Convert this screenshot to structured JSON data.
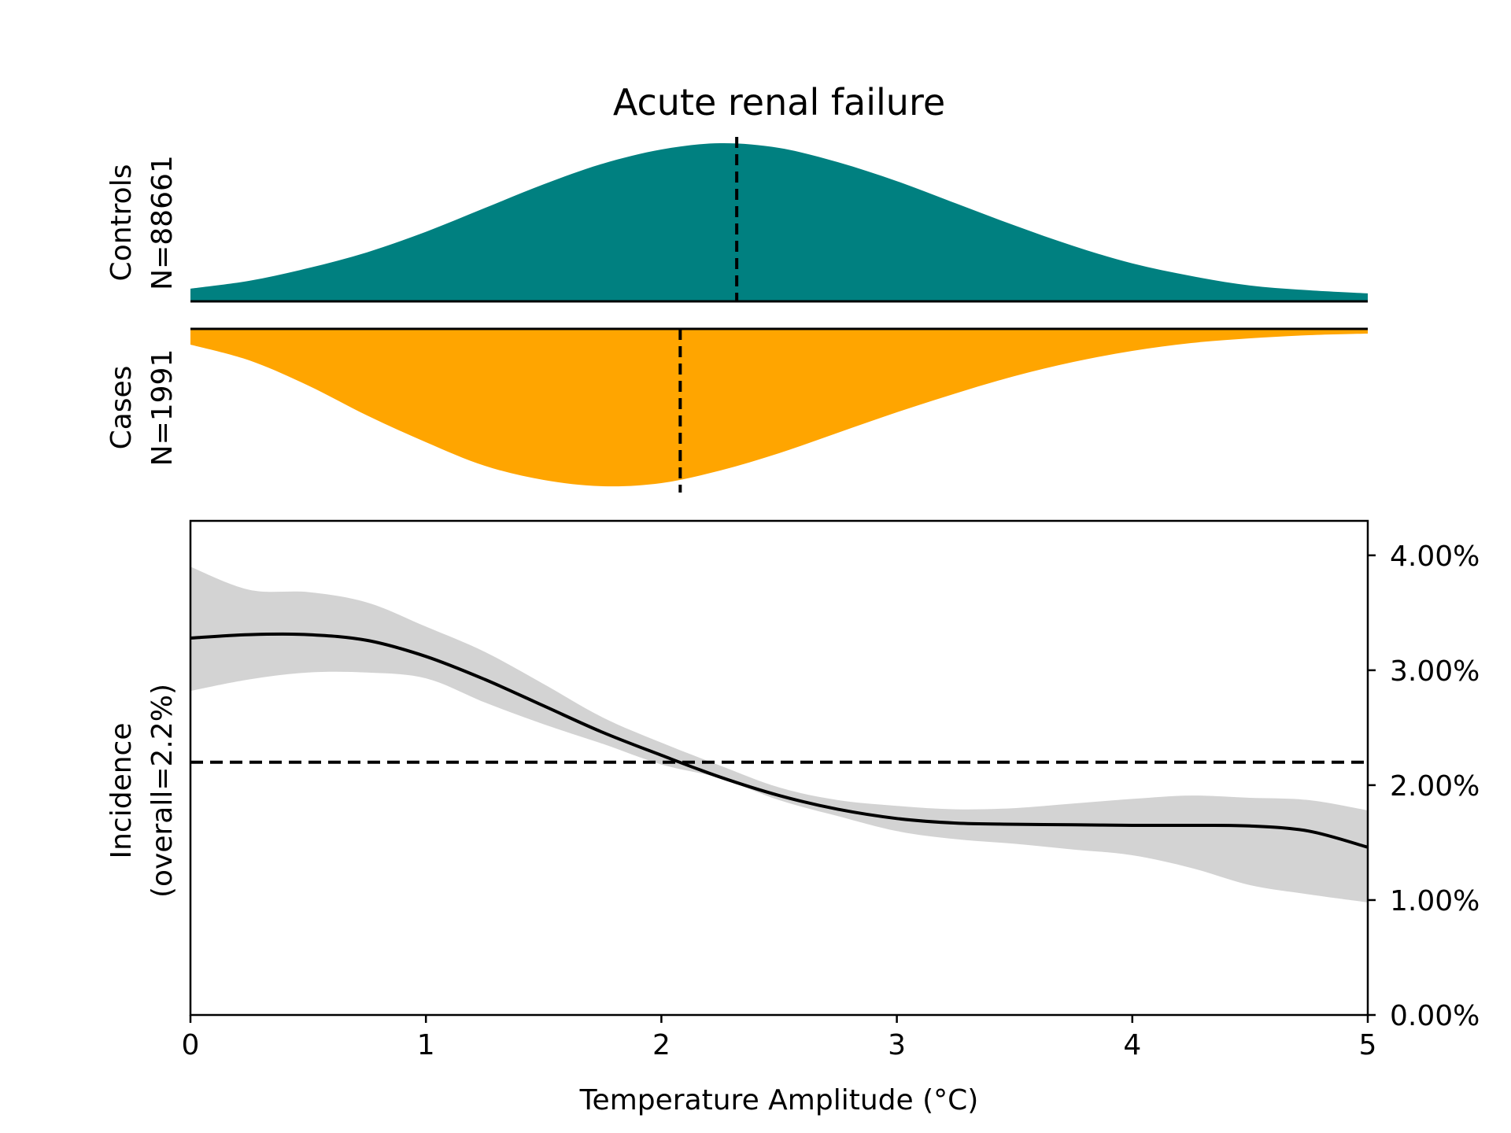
{
  "chart_data": [
    {
      "type": "area",
      "panel": "controls-density",
      "title": "Acute renal failure",
      "ylabel_lines": [
        "Controls",
        "N=88661"
      ],
      "x": [
        0,
        0.25,
        0.5,
        0.75,
        1.0,
        1.25,
        1.5,
        1.75,
        2.0,
        2.25,
        2.5,
        2.75,
        3.0,
        3.25,
        3.5,
        3.75,
        4.0,
        4.25,
        4.5,
        4.75,
        5.0
      ],
      "density": [
        0.08,
        0.13,
        0.21,
        0.31,
        0.44,
        0.59,
        0.74,
        0.87,
        0.96,
        1.0,
        0.97,
        0.88,
        0.76,
        0.62,
        0.48,
        0.35,
        0.24,
        0.16,
        0.1,
        0.07,
        0.05
      ],
      "mean": 2.32,
      "xlim": [
        0,
        5
      ],
      "color": "#008080"
    },
    {
      "type": "area",
      "panel": "cases-density",
      "ylabel_lines": [
        "Cases",
        "N=1991"
      ],
      "x": [
        0,
        0.25,
        0.5,
        0.75,
        1.0,
        1.25,
        1.5,
        1.75,
        2.0,
        2.25,
        2.5,
        2.75,
        3.0,
        3.25,
        3.5,
        3.75,
        4.0,
        4.25,
        4.5,
        4.75,
        5.0
      ],
      "density": [
        0.1,
        0.2,
        0.36,
        0.55,
        0.72,
        0.87,
        0.96,
        1.0,
        0.98,
        0.9,
        0.79,
        0.66,
        0.53,
        0.41,
        0.3,
        0.21,
        0.14,
        0.09,
        0.06,
        0.04,
        0.03
      ],
      "mean": 2.08,
      "xlim": [
        0,
        5
      ],
      "color": "#FFA500"
    },
    {
      "type": "line",
      "panel": "incidence",
      "ylabel_lines": [
        "Incidence",
        "(overall=2.2%)"
      ],
      "xlabel": "Temperature Amplitude (°C)",
      "xlim": [
        0,
        5
      ],
      "ylim": [
        0,
        4.3
      ],
      "xticks": [
        "0",
        "1",
        "2",
        "3",
        "4",
        "5"
      ],
      "yticks": [
        "0.00%",
        "1.00%",
        "2.00%",
        "3.00%",
        "4.00%"
      ],
      "overall": 2.2,
      "x": [
        0,
        0.25,
        0.5,
        0.75,
        1.0,
        1.25,
        1.5,
        1.75,
        2.0,
        2.25,
        2.5,
        2.75,
        3.0,
        3.25,
        3.5,
        3.75,
        4.0,
        4.25,
        4.5,
        4.75,
        5.0
      ],
      "y": [
        3.28,
        3.31,
        3.31,
        3.26,
        3.12,
        2.92,
        2.69,
        2.46,
        2.26,
        2.07,
        1.91,
        1.79,
        1.71,
        1.67,
        1.66,
        1.655,
        1.65,
        1.65,
        1.645,
        1.6,
        1.46
      ],
      "ci_lower": [
        2.82,
        2.92,
        2.98,
        2.98,
        2.93,
        2.72,
        2.53,
        2.36,
        2.18,
        2.06,
        1.87,
        1.73,
        1.6,
        1.53,
        1.49,
        1.44,
        1.39,
        1.28,
        1.13,
        1.05,
        0.98
      ],
      "ci_upper": [
        3.9,
        3.7,
        3.68,
        3.59,
        3.38,
        3.16,
        2.88,
        2.59,
        2.37,
        2.17,
        1.98,
        1.87,
        1.82,
        1.79,
        1.8,
        1.84,
        1.88,
        1.91,
        1.89,
        1.87,
        1.78
      ],
      "line_color": "#000000",
      "band_color": "#d3d3d3"
    }
  ]
}
